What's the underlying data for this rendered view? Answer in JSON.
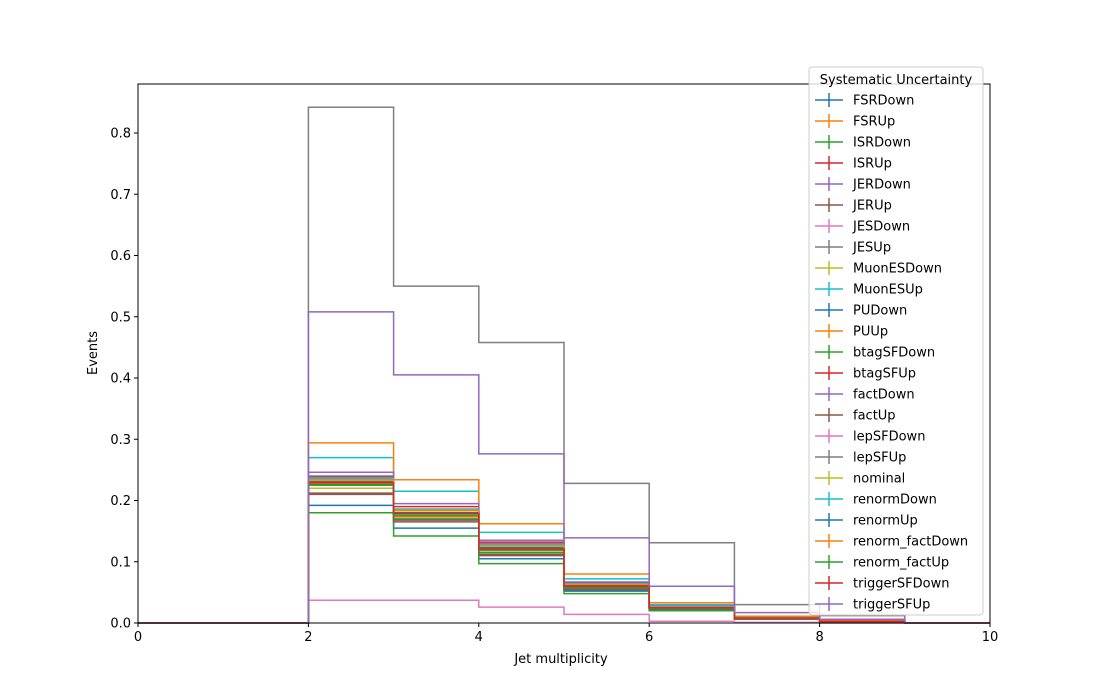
{
  "chart_data": {
    "type": "line",
    "drawstyle": "steps-post",
    "title": "",
    "xlabel": "Jet multiplicity",
    "ylabel": "Events",
    "xlim": [
      0,
      10
    ],
    "ylim": [
      0,
      0.88
    ],
    "xticks": [
      0,
      2,
      4,
      6,
      8,
      10
    ],
    "yticks": [
      0.0,
      0.1,
      0.2,
      0.3,
      0.4,
      0.5,
      0.6,
      0.7,
      0.8
    ],
    "ytick_labels": [
      "0.0",
      "0.1",
      "0.2",
      "0.3",
      "0.4",
      "0.5",
      "0.6",
      "0.7",
      "0.8"
    ],
    "grid": false,
    "legend": {
      "title": "Systematic Uncertainty",
      "placement": "top-right"
    },
    "bin_edges": [
      0,
      1,
      2,
      3,
      4,
      5,
      6,
      7,
      8,
      9,
      10
    ],
    "series": [
      {
        "name": "FSRDown",
        "color": "#1f77b4",
        "values": [
          0,
          0,
          0.235,
          0.175,
          0.12,
          0.06,
          0.025,
          0.008,
          0.003,
          0.0
        ]
      },
      {
        "name": "FSRUp",
        "color": "#ff7f0e",
        "values": [
          0,
          0,
          0.228,
          0.173,
          0.118,
          0.058,
          0.024,
          0.008,
          0.003,
          0.0
        ]
      },
      {
        "name": "ISRDown",
        "color": "#2ca02c",
        "values": [
          0,
          0,
          0.225,
          0.17,
          0.115,
          0.056,
          0.023,
          0.007,
          0.003,
          0.0
        ]
      },
      {
        "name": "ISRUp",
        "color": "#d62728",
        "values": [
          0,
          0,
          0.232,
          0.18,
          0.125,
          0.062,
          0.026,
          0.008,
          0.003,
          0.0
        ]
      },
      {
        "name": "JERDown",
        "color": "#9467bd",
        "values": [
          0,
          0,
          0.24,
          0.185,
          0.13,
          0.065,
          0.027,
          0.009,
          0.003,
          0.0
        ]
      },
      {
        "name": "JERUp",
        "color": "#8c564b",
        "values": [
          0,
          0,
          0.21,
          0.168,
          0.11,
          0.054,
          0.022,
          0.007,
          0.002,
          0.0
        ]
      },
      {
        "name": "JESDown",
        "color": "#e377c2",
        "values": [
          0,
          0,
          0.037,
          0.037,
          0.026,
          0.014,
          0.003,
          0.001,
          0.0,
          0.0
        ]
      },
      {
        "name": "JESUp",
        "color": "#7f7f7f",
        "values": [
          0,
          0,
          0.842,
          0.55,
          0.458,
          0.228,
          0.131,
          0.03,
          0.012,
          0.0
        ]
      },
      {
        "name": "MuonESDown",
        "color": "#bcbd22",
        "values": [
          0,
          0,
          0.22,
          0.178,
          0.12,
          0.06,
          0.025,
          0.008,
          0.003,
          0.0
        ]
      },
      {
        "name": "MuonESUp",
        "color": "#17becf",
        "values": [
          0,
          0,
          0.27,
          0.215,
          0.148,
          0.072,
          0.03,
          0.01,
          0.003,
          0.0
        ]
      },
      {
        "name": "PUDown",
        "color": "#1f77b4",
        "values": [
          0,
          0,
          0.192,
          0.155,
          0.105,
          0.052,
          0.021,
          0.007,
          0.002,
          0.0
        ]
      },
      {
        "name": "PUUp",
        "color": "#ff7f0e",
        "values": [
          0,
          0,
          0.294,
          0.234,
          0.162,
          0.08,
          0.033,
          0.011,
          0.004,
          0.0
        ]
      },
      {
        "name": "btagSFDown",
        "color": "#2ca02c",
        "values": [
          0,
          0,
          0.18,
          0.142,
          0.097,
          0.048,
          0.02,
          0.006,
          0.002,
          0.0
        ]
      },
      {
        "name": "btagSFUp",
        "color": "#d62728",
        "values": [
          0,
          0,
          0.238,
          0.19,
          0.132,
          0.066,
          0.027,
          0.009,
          0.003,
          0.0
        ]
      },
      {
        "name": "factDown",
        "color": "#9467bd",
        "values": [
          0,
          0,
          0.246,
          0.195,
          0.135,
          0.067,
          0.028,
          0.009,
          0.003,
          0.0
        ]
      },
      {
        "name": "factUp",
        "color": "#8c564b",
        "values": [
          0,
          0,
          0.212,
          0.165,
          0.112,
          0.055,
          0.023,
          0.007,
          0.002,
          0.0
        ]
      },
      {
        "name": "lepSFDown",
        "color": "#e377c2",
        "values": [
          0,
          0,
          0.23,
          0.18,
          0.122,
          0.06,
          0.025,
          0.008,
          0.003,
          0.0
        ]
      },
      {
        "name": "lepSFUp",
        "color": "#7f7f7f",
        "values": [
          0,
          0,
          0.237,
          0.186,
          0.128,
          0.063,
          0.026,
          0.009,
          0.003,
          0.0
        ]
      },
      {
        "name": "nominal",
        "color": "#bcbd22",
        "values": [
          0,
          0,
          0.233,
          0.183,
          0.125,
          0.062,
          0.026,
          0.008,
          0.003,
          0.0
        ]
      },
      {
        "name": "renormDown",
        "color": "#17becf",
        "values": [
          0,
          0,
          0.236,
          0.186,
          0.128,
          0.064,
          0.027,
          0.009,
          0.003,
          0.0
        ]
      },
      {
        "name": "renormUp",
        "color": "#1f77b4",
        "values": [
          0,
          0,
          0.23,
          0.18,
          0.123,
          0.061,
          0.025,
          0.008,
          0.003,
          0.0
        ]
      },
      {
        "name": "renorm_factDown",
        "color": "#ff7f0e",
        "values": [
          0,
          0,
          0.234,
          0.184,
          0.126,
          0.063,
          0.026,
          0.009,
          0.003,
          0.0
        ]
      },
      {
        "name": "renorm_factUp",
        "color": "#2ca02c",
        "values": [
          0,
          0,
          0.226,
          0.176,
          0.119,
          0.058,
          0.024,
          0.008,
          0.003,
          0.0
        ]
      },
      {
        "name": "triggerSFDown",
        "color": "#d62728",
        "values": [
          0,
          0,
          0.229,
          0.179,
          0.121,
          0.06,
          0.025,
          0.008,
          0.003,
          0.0
        ]
      },
      {
        "name": "triggerSFUp",
        "color": "#9467bd",
        "values": [
          0,
          0,
          0.508,
          0.405,
          0.276,
          0.139,
          0.06,
          0.017,
          0.006,
          0.0
        ]
      }
    ]
  }
}
